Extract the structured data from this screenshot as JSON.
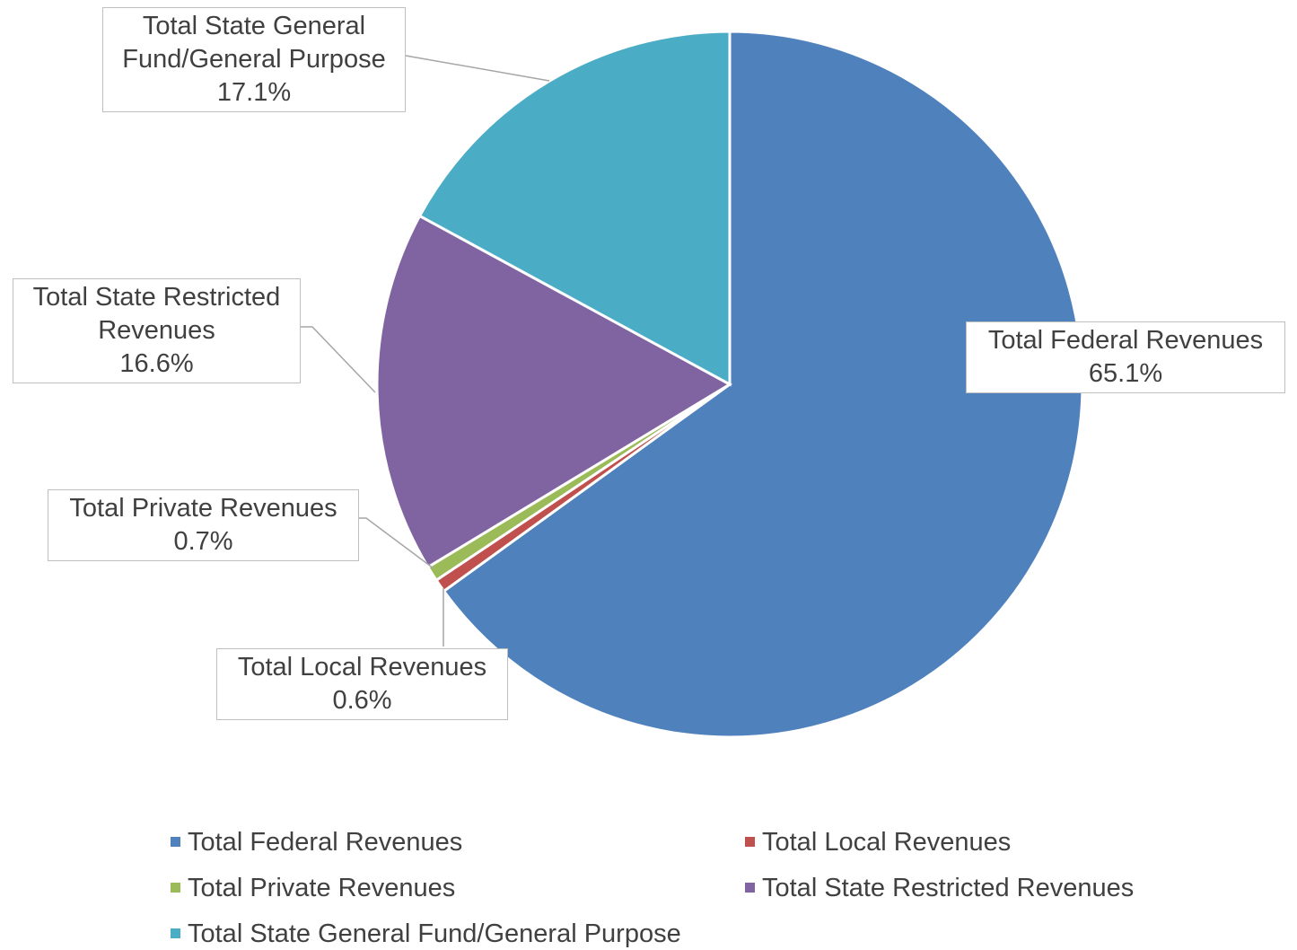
{
  "chart_data": {
    "type": "pie",
    "categories": [
      "Total Federal Revenues",
      "Total Local Revenues",
      "Total Private Revenues",
      "Total State Restricted Revenues",
      "Total State General Fund/General Purpose"
    ],
    "values": [
      65.1,
      0.6,
      0.7,
      16.6,
      17.1
    ],
    "value_labels": [
      "65.1%",
      "0.6%",
      "0.7%",
      "16.6%",
      "17.1%"
    ],
    "colors": [
      "#4f81bd",
      "#c0504d",
      "#9bbb59",
      "#8064a2",
      "#4bacc6"
    ],
    "legend": "bottom"
  }
}
